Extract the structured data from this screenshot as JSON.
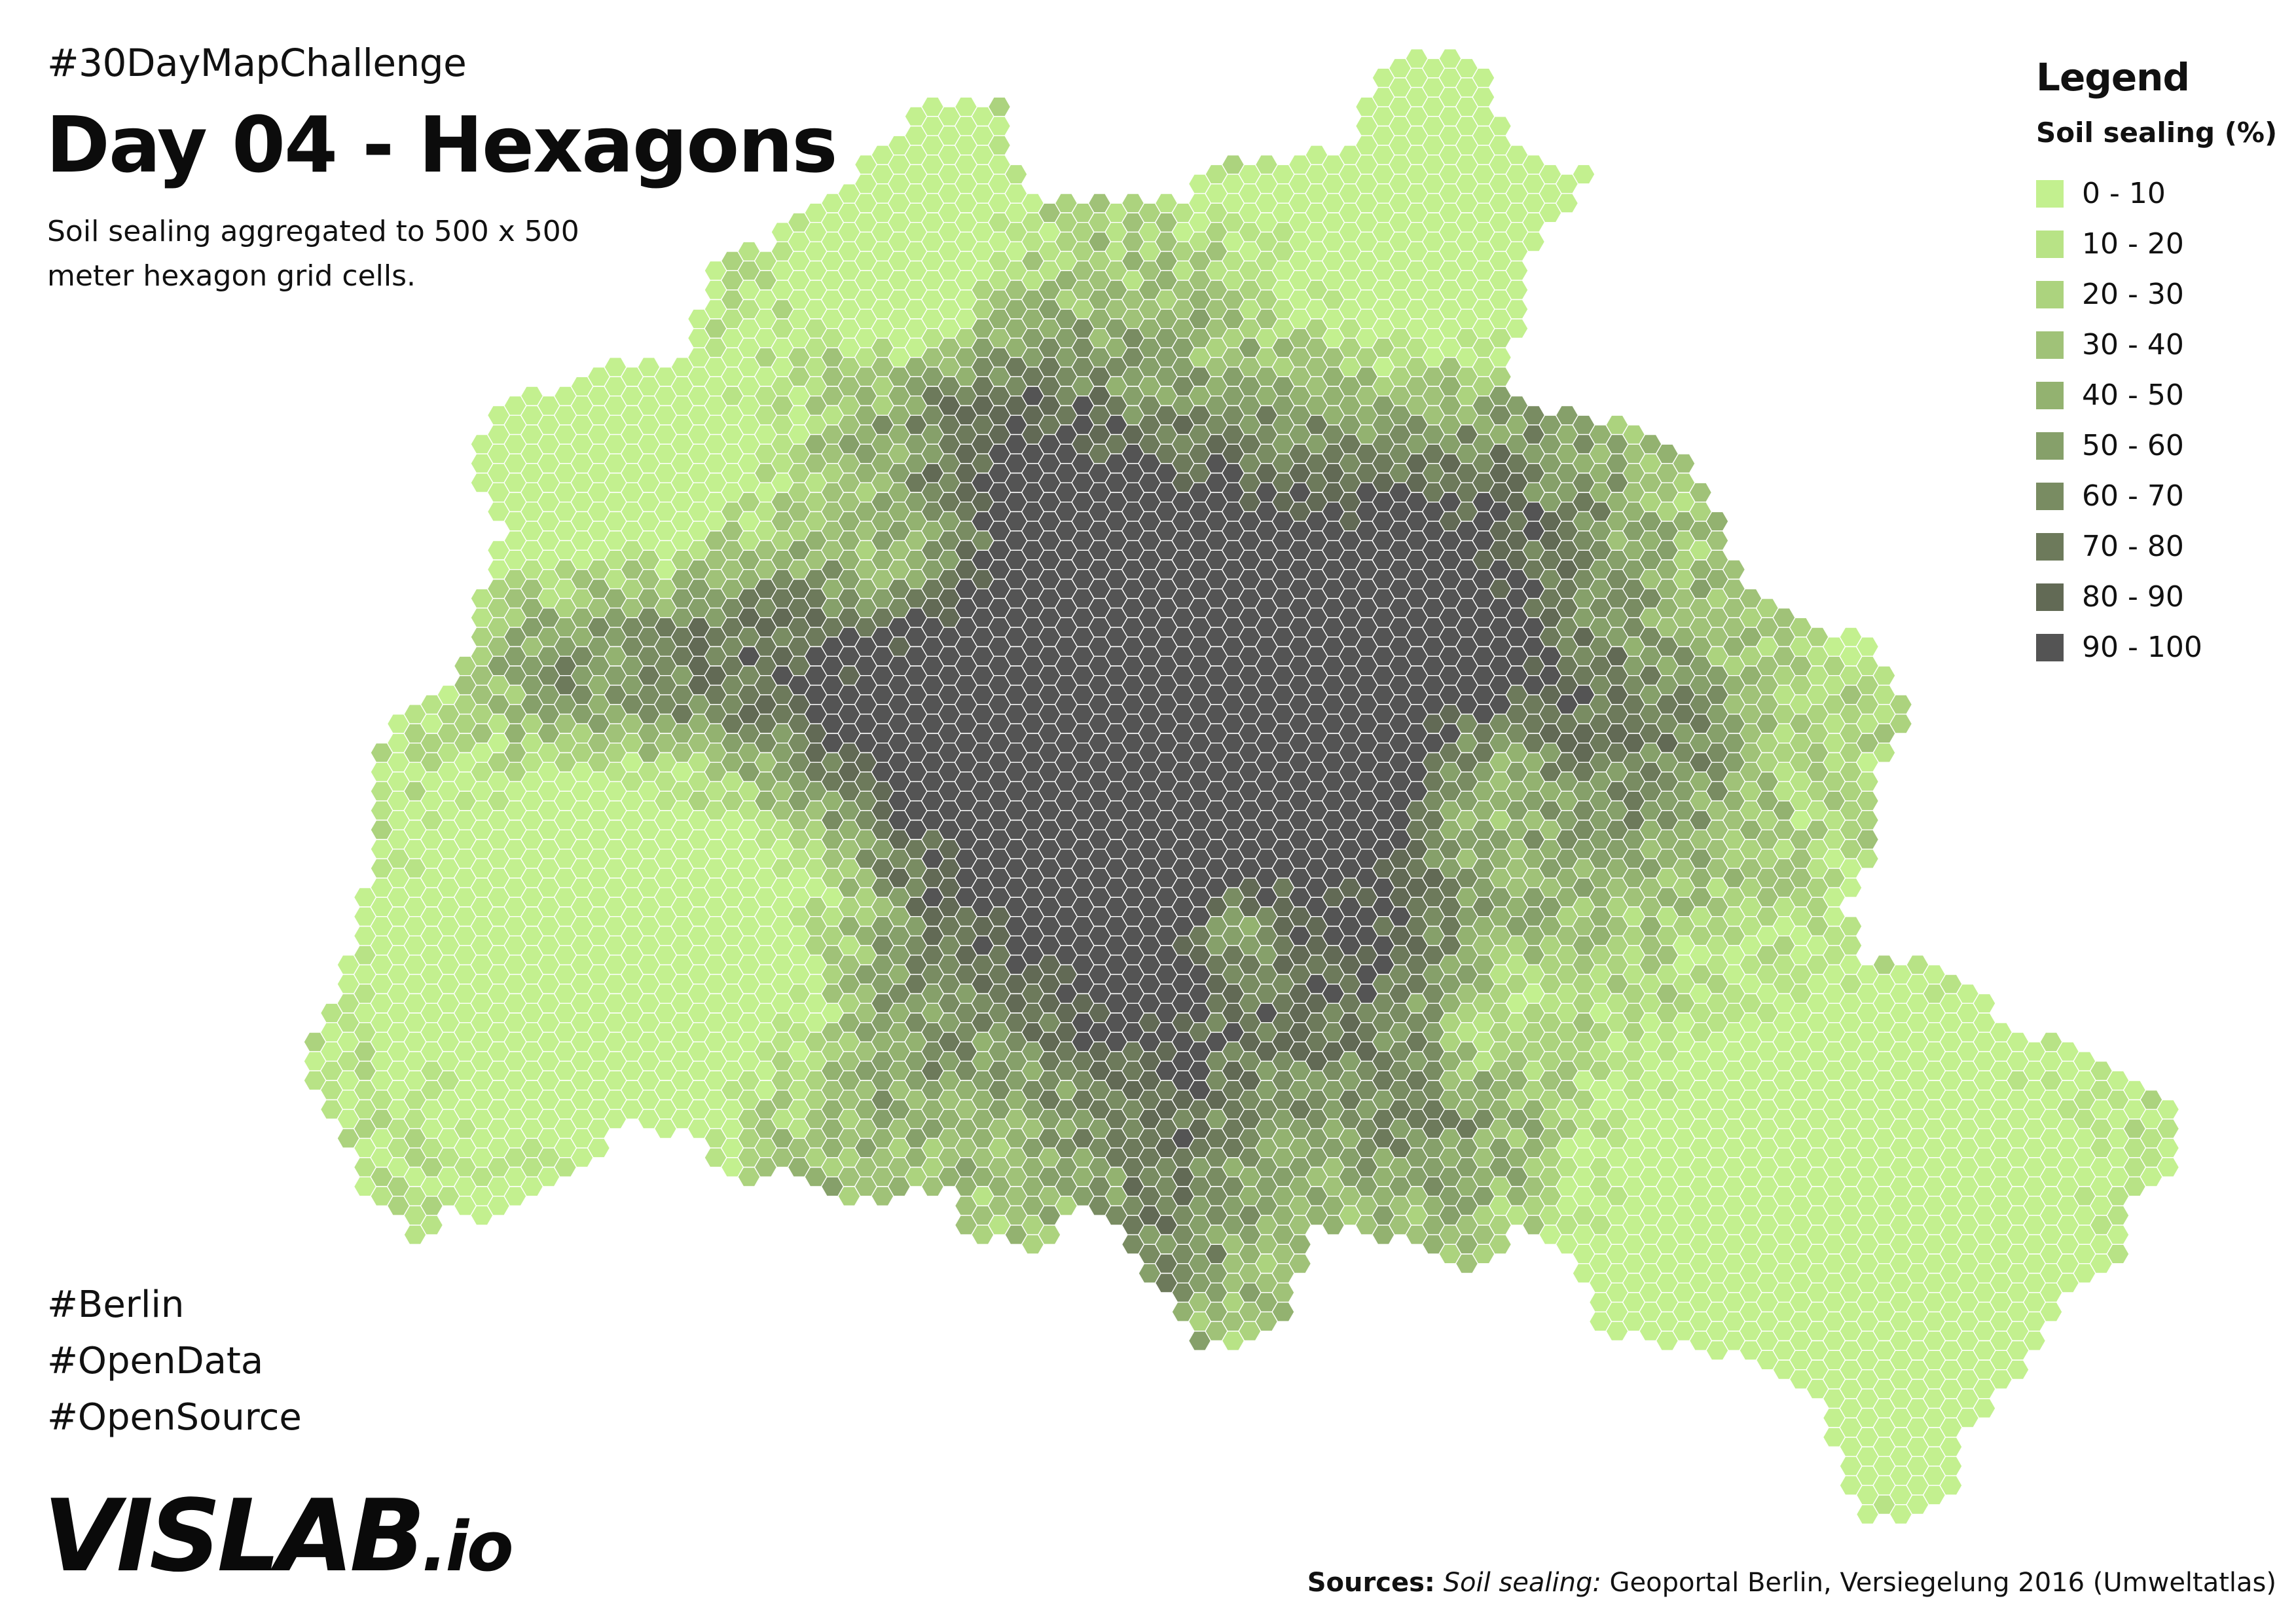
{
  "header": {
    "challenge_tag": "#30DayMapChallenge",
    "title": "Day 04 - Hexagons",
    "subtitle": "Soil sealing aggregated to 500 x 500 meter hexagon grid cells."
  },
  "hashtags": [
    "#Berlin",
    "#OpenData",
    "#OpenSource"
  ],
  "logo": {
    "main": "VISLAB",
    "suffix": ".io"
  },
  "sources": {
    "label": "Sources:",
    "dataset": "Soil sealing:",
    "text": "Geoportal Berlin, Versiegelung 2016 (Umweltatlas)"
  },
  "legend": {
    "title": "Legend",
    "subtitle": "Soil sealing (%)",
    "classes": [
      {
        "label": "0 - 10",
        "color": "#c3f08f"
      },
      {
        "label": "10 - 20",
        "color": "#b8e386"
      },
      {
        "label": "20 - 30",
        "color": "#acd37e"
      },
      {
        "label": "30 - 40",
        "color": "#a0c278"
      },
      {
        "label": "40 - 50",
        "color": "#93b270"
      },
      {
        "label": "50 - 60",
        "color": "#86a06a"
      },
      {
        "label": "60 - 70",
        "color": "#798c62"
      },
      {
        "label": "70 - 80",
        "color": "#6d7a5b"
      },
      {
        "label": "80 - 90",
        "color": "#626a55"
      },
      {
        "label": "90 - 100",
        "color": "#545454"
      }
    ]
  },
  "map": {
    "layer": "soil-sealing-hexagon-grid",
    "cell_size": "500 x 500 meter",
    "outline_color": "#ffffff"
  }
}
